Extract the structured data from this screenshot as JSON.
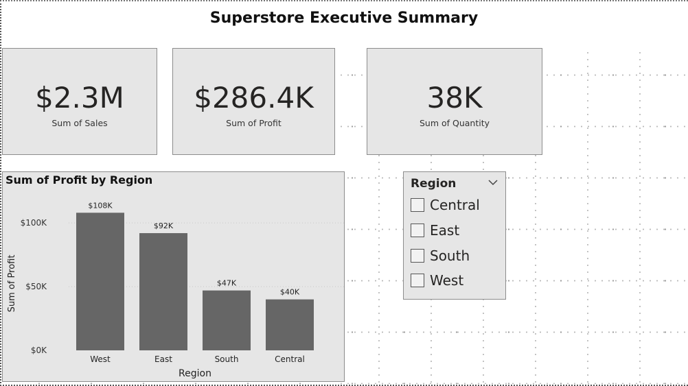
{
  "report": {
    "title": "Superstore Executive Summary"
  },
  "kpis": [
    {
      "value": "$2.3M",
      "label": "Sum of Sales"
    },
    {
      "value": "$286.4K",
      "label": "Sum of Profit"
    },
    {
      "value": "38K",
      "label": "Sum of Quantity"
    }
  ],
  "chart_data": {
    "type": "bar",
    "title": "Sum of Profit by Region",
    "xlabel": "Region",
    "ylabel": "Sum of Profit",
    "categories": [
      "West",
      "East",
      "South",
      "Central"
    ],
    "values": [
      108,
      92,
      47,
      40
    ],
    "data_labels": [
      "$108K",
      "$92K",
      "$47K",
      "$40K"
    ],
    "units": "thousands of dollars",
    "ylim": [
      0,
      120
    ],
    "yticks": [
      0,
      50,
      100
    ],
    "ytick_labels": [
      "$0K",
      "$50K",
      "$100K"
    ],
    "grid": true,
    "bar_color": "#666666"
  },
  "slicer": {
    "title": "Region",
    "options": [
      "Central",
      "East",
      "South",
      "West"
    ]
  }
}
